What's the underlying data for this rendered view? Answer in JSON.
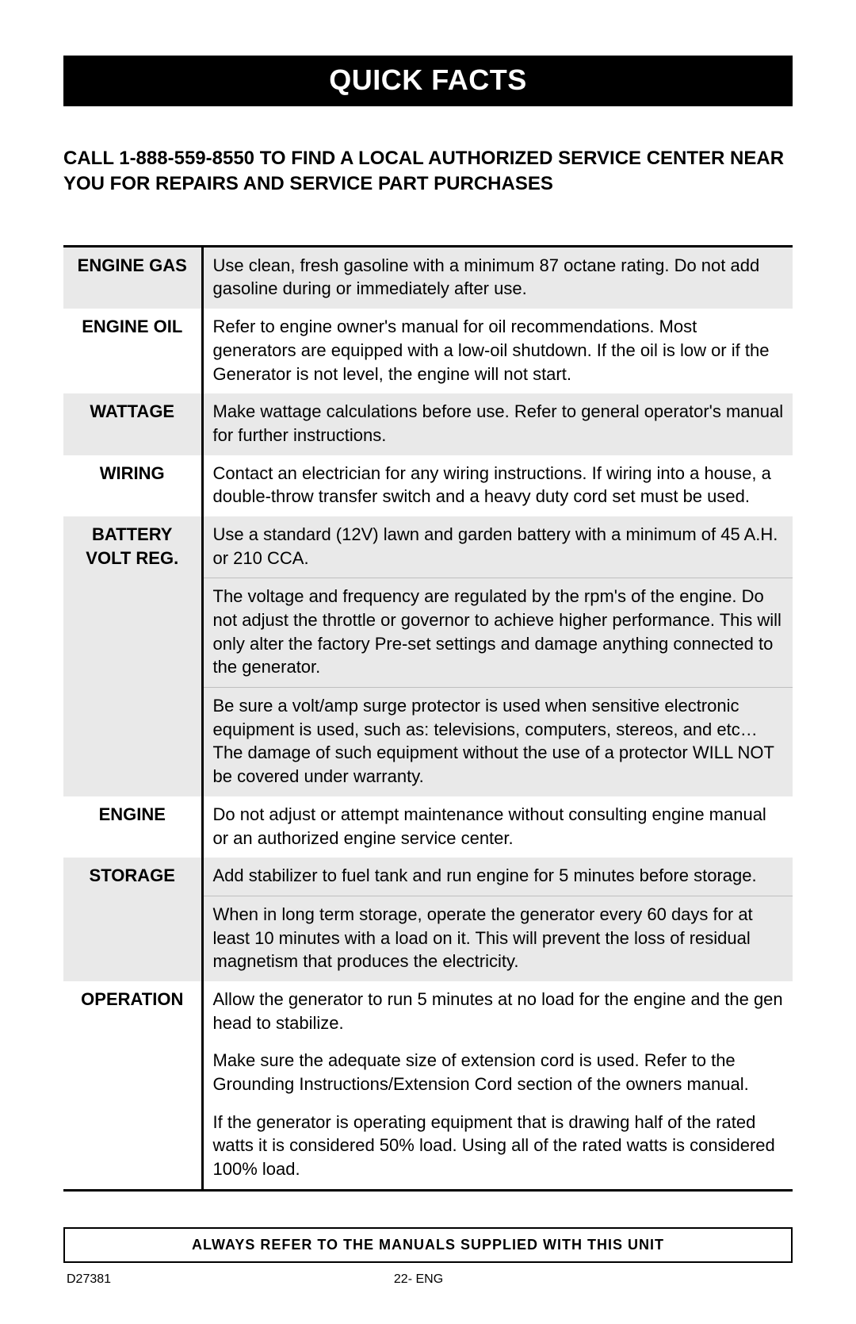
{
  "title": "QUICK FACTS",
  "call_text": "CALL 1-888-559-8550 TO FIND A LOCAL AUTHORIZED SERVICE CENTER NEAR YOU FOR REPAIRS AND SERVICE PART PURCHASES",
  "rows": {
    "engine_gas": {
      "label": "ENGINE GAS",
      "cells": [
        "Use clean, fresh gasoline with a minimum 87 octane rating.  Do not add gasoline during or immediately after use."
      ],
      "shaded": true
    },
    "engine_oil": {
      "label": "ENGINE OIL",
      "cells": [
        "Refer to engine owner's manual for oil recommendations.  Most generators are equipped with a low-oil shutdown.  If the oil is low or if the Generator is not level, the engine will not start."
      ],
      "shaded": false
    },
    "wattage": {
      "label": "WATTAGE",
      "cells": [
        "Make wattage calculations before use.  Refer to general operator's manual for further instructions."
      ],
      "shaded": true
    },
    "wiring": {
      "label": "WIRING",
      "cells": [
        "Contact an electrician for any wiring instructions.  If wiring into a house, a double-throw transfer switch and a heavy duty cord set must be used."
      ],
      "shaded": false
    },
    "battery": {
      "label": "BATTERY VOLT REG.",
      "cells": [
        "Use a standard (12V) lawn and garden battery with a minimum of 45 A.H. or 210 CCA.",
        "The voltage and frequency are regulated by the rpm's of the engine.  Do not adjust the throttle or governor to achieve higher performance.  This will only alter the factory Pre-set settings and damage anything connected to the generator.",
        "Be sure a volt/amp surge protector is used when sensitive electronic equipment is used, such as: televisions, computers, stereos, and etc… The damage of such equipment without the use of a protector WILL NOT be covered under warranty."
      ],
      "shaded": true
    },
    "engine": {
      "label": "ENGINE",
      "cells": [
        "Do not adjust or attempt maintenance without consulting engine manual or an authorized engine service center."
      ],
      "shaded": false
    },
    "storage": {
      "label": "STORAGE",
      "cells": [
        "Add stabilizer to fuel tank and run engine for 5 minutes before storage.",
        "When in long term storage, operate the generator every 60 days for at least 10 minutes with a load on it. This will prevent the loss of residual magnetism that produces the electricity."
      ],
      "shaded": true
    },
    "operation": {
      "label": "OPERATION",
      "cells": [
        "Allow the generator to run 5 minutes at no load for the engine and the gen head to stabilize.",
        "Make sure the adequate size of extension cord is used. Refer to the Grounding Instructions/Extension Cord section of the owners manual.",
        "If the generator is operating equipment that is drawing half of the rated watts it is considered 50% load. Using all of the rated watts is considered 100% load."
      ],
      "shaded": false
    }
  },
  "footer_box": "ALWAYS REFER TO THE MANUALS SUPPLIED WITH THIS UNIT",
  "footer_doc": "D27381",
  "footer_page": "22- ENG"
}
